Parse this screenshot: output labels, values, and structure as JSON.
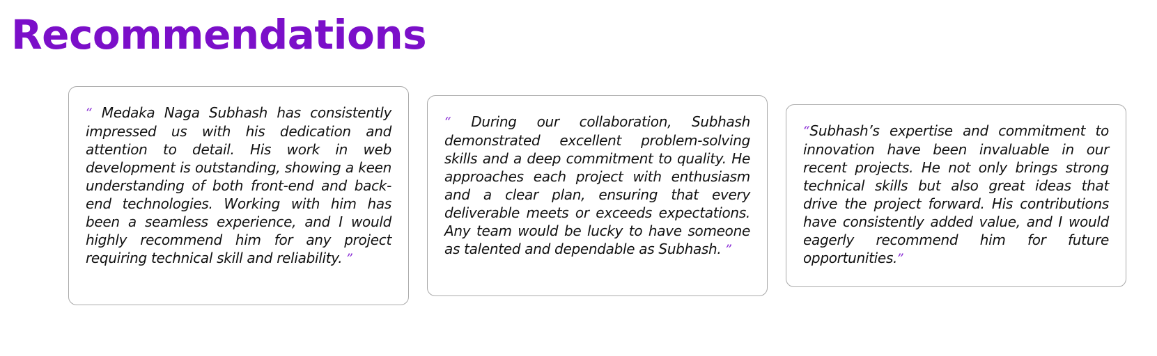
{
  "page": {
    "title": "Recommendations"
  },
  "colors": {
    "title": "#7b0fc9",
    "quote_mark": "#8b2fd6",
    "card_border": "#a9a9a9"
  },
  "recommendations": [
    {
      "open_quote": "“",
      "text": " Medaka Naga Subhash has consistently impressed us with his dedication and attention to detail. His work in web development is outstanding, showing a keen understanding of both front-end and back-end technologies. Working with him has been a seamless experience, and I would highly recommend him for any project requiring technical skill and reliability. ",
      "close_quote": "”"
    },
    {
      "open_quote": "“",
      "text": "  During our collaboration, Subhash demonstrated excellent problem-solving skills and a deep commitment to quality. He approaches each project with enthusiasm and a clear plan, ensuring that every deliverable meets or exceeds expectations. Any team would be lucky to have someone as talented and dependable as Subhash. ",
      "close_quote": "”"
    },
    {
      "open_quote": "“",
      "text": "Subhash’s expertise and commitment to innovation have been invaluable in our recent projects. He not only brings strong technical skills but also great ideas that drive the project forward. His contributions have consistently added value, and I would eagerly recommend him for future opportunities.",
      "close_quote": "”"
    }
  ]
}
